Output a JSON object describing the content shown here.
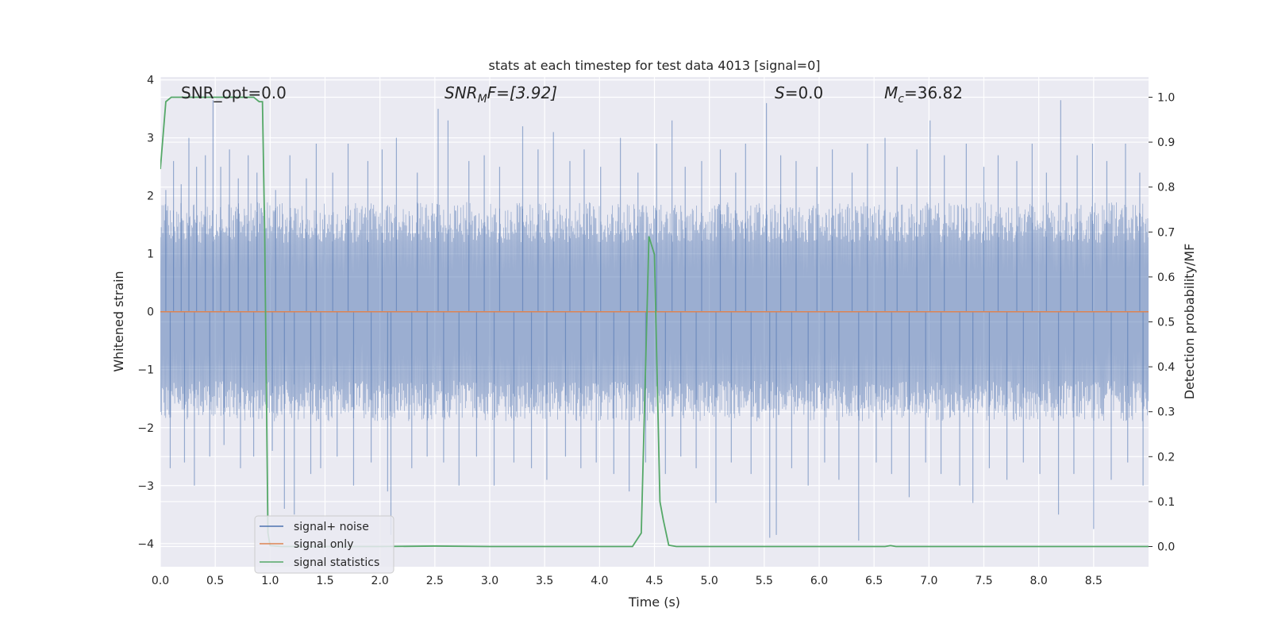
{
  "chart_data": {
    "type": "line",
    "title": "stats at each timestep for test data 4013 [signal=0]",
    "xlabel": "Time (s)",
    "ylabel": "Whitened strain",
    "ylabel_right": "Detection probability/MF",
    "xlim": [
      0,
      9
    ],
    "ylim": [
      -4.4,
      4.05
    ],
    "ylim_right": [
      -0.045,
      1.045
    ],
    "x_ticks": [
      0.0,
      0.5,
      1.0,
      1.5,
      2.0,
      2.5,
      3.0,
      3.5,
      4.0,
      4.5,
      5.0,
      5.5,
      6.0,
      6.5,
      7.0,
      7.5,
      8.0,
      8.5
    ],
    "x_tick_labels": [
      "0.0",
      "0.5",
      "1.0",
      "1.5",
      "2.0",
      "2.5",
      "3.0",
      "3.5",
      "4.0",
      "4.5",
      "5.0",
      "5.5",
      "6.0",
      "6.5",
      "7.0",
      "7.5",
      "8.0",
      "8.5"
    ],
    "y_ticks": [
      4,
      3,
      2,
      1,
      0,
      -1,
      -2,
      -3,
      -4
    ],
    "y_tick_labels": [
      "4",
      "3",
      "2",
      "1",
      "0",
      "−1",
      "−2",
      "−3",
      "−4"
    ],
    "y_ticks_right": [
      1.0,
      0.9,
      0.8,
      0.7,
      0.6,
      0.5,
      0.4,
      0.3,
      0.2,
      0.1,
      0.0
    ],
    "y_tick_labels_right": [
      "1.0",
      "0.9",
      "0.8",
      "0.7",
      "0.6",
      "0.5",
      "0.4",
      "0.3",
      "0.2",
      "0.1",
      "0.0"
    ],
    "grid": true,
    "legend_position": "lower-left",
    "annotations": {
      "snr_opt": "SNR_opt=0.0",
      "snr_mf_main": "SNR",
      "snr_mf_sub": "M",
      "snr_mf_tail": "F=[3.92]",
      "s_main": "S",
      "s_tail": "=0.0",
      "mc_main": "M",
      "mc_sub": "c",
      "mc_tail": "=36.82"
    },
    "series": [
      {
        "name": "signal+ noise",
        "axis": "left",
        "color": "#4c72b0",
        "noise_envelope": {
          "typical_abs": 1.4,
          "max": 3.7,
          "min": -3.95
        },
        "spikes": [
          [
            0.05,
            2.1
          ],
          [
            0.12,
            2.6
          ],
          [
            0.19,
            2.2
          ],
          [
            0.26,
            3.0
          ],
          [
            0.33,
            2.5
          ],
          [
            0.41,
            2.7
          ],
          [
            0.48,
            3.65
          ],
          [
            0.55,
            2.5
          ],
          [
            0.63,
            2.8
          ],
          [
            0.71,
            2.3
          ],
          [
            0.8,
            2.7
          ],
          [
            0.88,
            2.4
          ],
          [
            1.05,
            2.1
          ],
          [
            1.18,
            2.7
          ],
          [
            1.33,
            2.3
          ],
          [
            1.42,
            2.9
          ],
          [
            1.57,
            2.4
          ],
          [
            1.71,
            2.9
          ],
          [
            1.89,
            2.6
          ],
          [
            2.02,
            2.8
          ],
          [
            2.15,
            3.0
          ],
          [
            2.34,
            2.4
          ],
          [
            2.53,
            3.5
          ],
          [
            2.62,
            3.3
          ],
          [
            2.81,
            2.6
          ],
          [
            2.95,
            2.7
          ],
          [
            3.09,
            2.5
          ],
          [
            3.3,
            3.2
          ],
          [
            3.44,
            2.8
          ],
          [
            3.58,
            3.1
          ],
          [
            3.73,
            2.6
          ],
          [
            3.86,
            2.8
          ],
          [
            4.01,
            2.5
          ],
          [
            4.19,
            3.0
          ],
          [
            4.35,
            2.4
          ],
          [
            4.52,
            2.9
          ],
          [
            4.66,
            3.3
          ],
          [
            4.78,
            2.5
          ],
          [
            4.93,
            2.6
          ],
          [
            5.1,
            2.8
          ],
          [
            5.24,
            2.4
          ],
          [
            5.33,
            2.9
          ],
          [
            5.52,
            3.6
          ],
          [
            5.65,
            2.7
          ],
          [
            5.79,
            2.6
          ],
          [
            5.98,
            2.5
          ],
          [
            6.12,
            2.8
          ],
          [
            6.3,
            2.4
          ],
          [
            6.44,
            2.9
          ],
          [
            6.6,
            3.0
          ],
          [
            6.71,
            2.5
          ],
          [
            6.89,
            2.8
          ],
          [
            7.01,
            3.3
          ],
          [
            7.14,
            2.7
          ],
          [
            7.34,
            2.9
          ],
          [
            7.5,
            2.5
          ],
          [
            7.63,
            2.7
          ],
          [
            7.8,
            2.6
          ],
          [
            7.94,
            2.9
          ],
          [
            8.07,
            2.4
          ],
          [
            8.2,
            3.65
          ],
          [
            8.35,
            2.7
          ],
          [
            8.49,
            2.9
          ],
          [
            8.62,
            2.6
          ],
          [
            8.79,
            2.9
          ],
          [
            8.92,
            2.4
          ],
          [
            0.09,
            -2.7
          ],
          [
            0.22,
            -2.6
          ],
          [
            0.31,
            -3.0
          ],
          [
            0.45,
            -2.5
          ],
          [
            0.58,
            -2.3
          ],
          [
            0.73,
            -2.7
          ],
          [
            0.85,
            -2.5
          ],
          [
            1.02,
            -2.4
          ],
          [
            1.13,
            -3.4
          ],
          [
            1.22,
            -3.5
          ],
          [
            1.37,
            -2.8
          ],
          [
            1.46,
            -2.7
          ],
          [
            1.61,
            -2.5
          ],
          [
            1.76,
            -3.0
          ],
          [
            1.92,
            -2.6
          ],
          [
            2.07,
            -3.1
          ],
          [
            2.1,
            -3.85
          ],
          [
            2.29,
            -2.7
          ],
          [
            2.43,
            -2.5
          ],
          [
            2.58,
            -2.6
          ],
          [
            2.72,
            -3.0
          ],
          [
            2.88,
            -2.5
          ],
          [
            3.04,
            -3.0
          ],
          [
            3.22,
            -2.6
          ],
          [
            3.38,
            -2.7
          ],
          [
            3.52,
            -2.9
          ],
          [
            3.69,
            -2.5
          ],
          [
            3.83,
            -2.7
          ],
          [
            3.97,
            -2.6
          ],
          [
            4.13,
            -2.8
          ],
          [
            4.27,
            -3.1
          ],
          [
            4.42,
            -2.6
          ],
          [
            4.6,
            -2.8
          ],
          [
            4.74,
            -2.5
          ],
          [
            4.88,
            -2.7
          ],
          [
            5.06,
            -3.3
          ],
          [
            5.2,
            -2.6
          ],
          [
            5.38,
            -2.8
          ],
          [
            5.55,
            -3.9
          ],
          [
            5.61,
            -3.85
          ],
          [
            5.75,
            -2.7
          ],
          [
            5.9,
            -3.0
          ],
          [
            6.05,
            -2.6
          ],
          [
            6.18,
            -2.9
          ],
          [
            6.36,
            -3.95
          ],
          [
            6.52,
            -2.6
          ],
          [
            6.66,
            -2.8
          ],
          [
            6.82,
            -3.2
          ],
          [
            6.97,
            -2.6
          ],
          [
            7.11,
            -2.8
          ],
          [
            7.28,
            -3.0
          ],
          [
            7.4,
            -3.3
          ],
          [
            7.55,
            -2.7
          ],
          [
            7.71,
            -2.9
          ],
          [
            7.86,
            -2.6
          ],
          [
            8.01,
            -2.8
          ],
          [
            8.18,
            -3.5
          ],
          [
            8.32,
            -2.8
          ],
          [
            8.5,
            -3.75
          ],
          [
            8.66,
            -2.9
          ],
          [
            8.81,
            -2.6
          ],
          [
            8.95,
            -3.0
          ]
        ]
      },
      {
        "name": "signal only",
        "axis": "left",
        "color": "#dd8452",
        "x": [
          0,
          9
        ],
        "y": [
          0,
          0
        ]
      },
      {
        "name": "signal statistics",
        "axis": "right",
        "color": "#55a868",
        "x": [
          0.0,
          0.05,
          0.1,
          0.2,
          0.3,
          0.5,
          0.7,
          0.85,
          0.9,
          0.93,
          0.95,
          0.98,
          1.0,
          1.1,
          1.3,
          1.5,
          2.0,
          2.5,
          3.0,
          4.0,
          4.3,
          4.38,
          4.45,
          4.5,
          4.55,
          4.58,
          4.63,
          4.7,
          5.0,
          6.0,
          6.6,
          6.65,
          6.7,
          7.0,
          8.0,
          9.0
        ],
        "y": [
          0.84,
          0.99,
          1.0,
          1.0,
          1.0,
          1.0,
          1.0,
          1.0,
          0.99,
          0.99,
          0.7,
          0.03,
          0.002,
          0.0,
          0.0,
          0.0,
          0.0,
          0.001,
          0.0,
          0.0,
          0.0,
          0.03,
          0.69,
          0.65,
          0.1,
          0.06,
          0.003,
          0.0,
          0.0,
          0.0,
          0.0,
          0.002,
          0.0,
          0.0,
          0.0,
          0.0
        ]
      }
    ]
  }
}
